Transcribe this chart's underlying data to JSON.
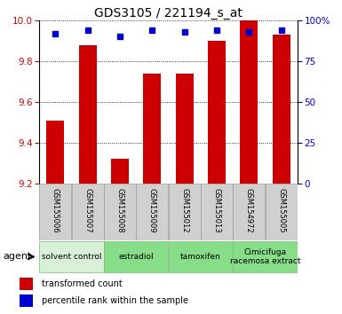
{
  "title": "GDS3105 / 221194_s_at",
  "samples": [
    "GSM155006",
    "GSM155007",
    "GSM155008",
    "GSM155009",
    "GSM155012",
    "GSM155013",
    "GSM154972",
    "GSM155005"
  ],
  "bar_values": [
    9.51,
    9.88,
    9.32,
    9.74,
    9.74,
    9.9,
    10.0,
    9.93
  ],
  "percentile_values": [
    92,
    94,
    90,
    94,
    93,
    94,
    93,
    94
  ],
  "ylim_left": [
    9.2,
    10.0
  ],
  "ylim_right": [
    0,
    100
  ],
  "yticks_left": [
    9.2,
    9.4,
    9.6,
    9.8,
    10.0
  ],
  "yticks_right": [
    0,
    25,
    50,
    75,
    100
  ],
  "ytick_labels_right": [
    "0",
    "25",
    "50",
    "75",
    "100%"
  ],
  "bar_color": "#cc0000",
  "dot_color": "#0000cc",
  "bar_width": 0.55,
  "agent_groups": [
    {
      "label": "solvent control",
      "start": 0,
      "end": 2,
      "color": "#d8f0d8"
    },
    {
      "label": "estradiol",
      "start": 2,
      "end": 4,
      "color": "#88dd88"
    },
    {
      "label": "tamoxifen",
      "start": 4,
      "end": 6,
      "color": "#88dd88"
    },
    {
      "label": "Cimicifuga\nracemosa extract",
      "start": 6,
      "end": 8,
      "color": "#88dd88"
    }
  ],
  "legend_items": [
    {
      "color": "#cc0000",
      "label": "transformed count"
    },
    {
      "color": "#0000cc",
      "label": "percentile rank within the sample"
    }
  ],
  "grid_color": "#000000",
  "bg_color": "#ffffff",
  "plot_bg_color": "#ffffff",
  "tick_label_color_left": "#cc0000",
  "tick_label_color_right": "#0000cc",
  "sample_box_color": "#d0d0d0",
  "title_fontsize": 10,
  "tick_fontsize": 7.5
}
